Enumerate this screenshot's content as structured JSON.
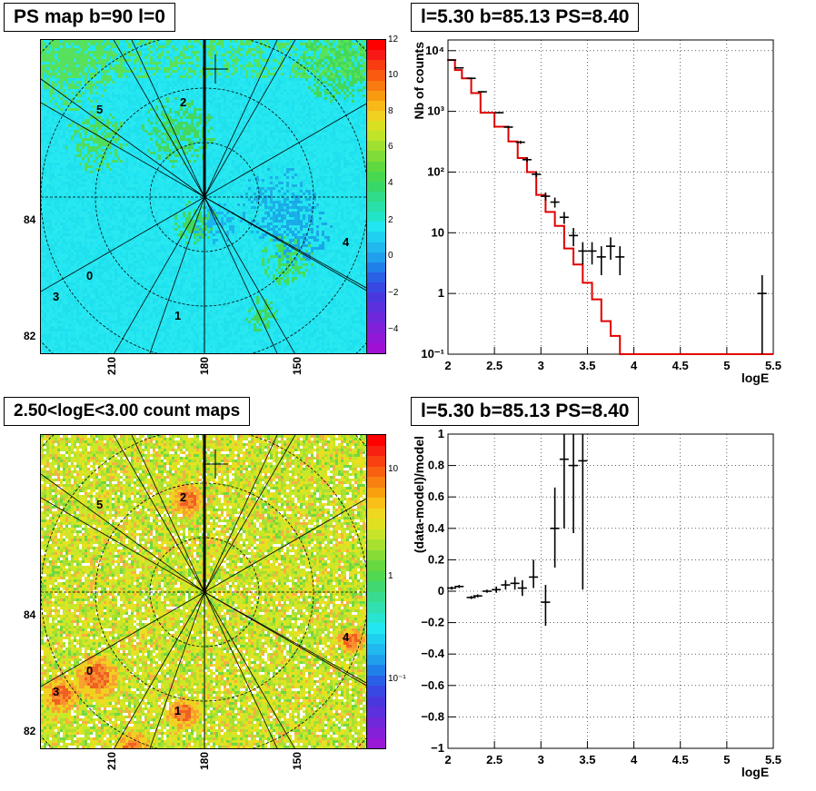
{
  "panels": {
    "top_left_title": "PS map b=90 l=0",
    "top_right_title": "l=5.30 b=85.13 PS=8.40",
    "bottom_left_title": "2.50<logE<3.00 count maps",
    "bottom_right_title": "l=5.30 b=85.13 PS=8.40"
  },
  "colors": {
    "map_top_bg": "#22e6f2",
    "map_bottom_bg": "#c8e82a",
    "model_line": "#e00000",
    "data_marks": "#000000"
  },
  "maps": {
    "top": {
      "colorbar_ticks": [
        "12",
        "10",
        "8",
        "6",
        "4",
        "2",
        "0",
        "−2",
        "−4"
      ],
      "ylabels": [
        "84",
        "82"
      ],
      "xlabels": [
        "210",
        "180",
        "150"
      ],
      "region_labels": [
        "5",
        "2",
        "4",
        "0",
        "3",
        "1"
      ]
    },
    "bottom": {
      "colorbar_ticks": [
        "10",
        "1",
        "10⁻¹"
      ],
      "ylabels": [
        "84",
        "82"
      ],
      "xlabels": [
        "210",
        "180",
        "150"
      ],
      "region_labels": [
        "5",
        "2",
        "4",
        "0",
        "3",
        "1"
      ]
    }
  },
  "chart_data": [
    {
      "type": "line",
      "title": "l=5.30 b=85.13 PS=8.40",
      "xlabel": "logE",
      "ylabel": "Nb of counts",
      "xlim": [
        2,
        5.5
      ],
      "ylim": [
        0.1,
        15000
      ],
      "yscale": "log",
      "grid": true,
      "xticks": [
        "2",
        "2.5",
        "3",
        "3.5",
        "4",
        "4.5",
        "5",
        "5.5"
      ],
      "yticks": [
        {
          "v": 10000,
          "label": "10⁴"
        },
        {
          "v": 1000,
          "label": "10³"
        },
        {
          "v": 100,
          "label": "10²"
        },
        {
          "v": 10,
          "label": "10"
        },
        {
          "v": 1,
          "label": "1"
        },
        {
          "v": 0.1,
          "label": "10⁻¹"
        }
      ],
      "model_step": {
        "edges": [
          2.0,
          2.075,
          2.15,
          2.25,
          2.35,
          2.5,
          2.65,
          2.75,
          2.85,
          2.95,
          3.05,
          3.15,
          3.25,
          3.35,
          3.45,
          3.55,
          3.65,
          3.75,
          3.85,
          4.0,
          5.5
        ],
        "values": [
          7000,
          4800,
          3500,
          2000,
          950,
          560,
          320,
          170,
          100,
          42,
          22,
          13,
          5.5,
          3.0,
          1.5,
          0.8,
          0.35,
          0.2,
          0.1,
          0.1
        ]
      },
      "data_points": [
        {
          "x": 2.04,
          "y": 7000,
          "ylo": 6900,
          "yhi": 7100
        },
        {
          "x": 2.12,
          "y": 5200,
          "ylo": 5100,
          "yhi": 5300
        },
        {
          "x": 2.25,
          "y": 3500,
          "ylo": 3440,
          "yhi": 3560
        },
        {
          "x": 2.37,
          "y": 2100,
          "ylo": 2050,
          "yhi": 2150
        },
        {
          "x": 2.55,
          "y": 950,
          "ylo": 920,
          "yhi": 980
        },
        {
          "x": 2.65,
          "y": 550,
          "ylo": 525,
          "yhi": 575
        },
        {
          "x": 2.78,
          "y": 310,
          "ylo": 292,
          "yhi": 328
        },
        {
          "x": 2.85,
          "y": 160,
          "ylo": 147,
          "yhi": 173
        },
        {
          "x": 2.95,
          "y": 92,
          "ylo": 82,
          "yhi": 102
        },
        {
          "x": 3.05,
          "y": 40,
          "ylo": 34,
          "yhi": 46
        },
        {
          "x": 3.15,
          "y": 32,
          "ylo": 26,
          "yhi": 38
        },
        {
          "x": 3.25,
          "y": 18,
          "ylo": 14,
          "yhi": 22
        },
        {
          "x": 3.35,
          "y": 9,
          "ylo": 6,
          "yhi": 12
        },
        {
          "x": 3.45,
          "y": 5,
          "ylo": 3,
          "yhi": 7
        },
        {
          "x": 3.55,
          "y": 5,
          "ylo": 3,
          "yhi": 7
        },
        {
          "x": 3.65,
          "y": 4,
          "ylo": 2,
          "yhi": 6
        },
        {
          "x": 3.75,
          "y": 6,
          "ylo": 3.6,
          "yhi": 8.4
        },
        {
          "x": 3.85,
          "y": 4,
          "ylo": 2,
          "yhi": 6
        },
        {
          "x": 5.38,
          "y": 1,
          "ylo": 0.1,
          "yhi": 2
        }
      ]
    },
    {
      "type": "scatter",
      "title": "l=5.30 b=85.13 PS=8.40",
      "xlabel": "logE",
      "ylabel": "(data-model)/model",
      "xlim": [
        2,
        5.5
      ],
      "ylim": [
        -1,
        1
      ],
      "grid": true,
      "xticks": [
        "2",
        "2.5",
        "3",
        "3.5",
        "4",
        "4.5",
        "5",
        "5.5"
      ],
      "yticks": [
        "1",
        "0.8",
        "0.6",
        "0.4",
        "0.2",
        "0",
        "−0.2",
        "−0.4",
        "−0.6",
        "−0.8",
        "−1"
      ],
      "data_points": [
        {
          "x": 2.04,
          "y": 0.02,
          "ylo": 0.01,
          "yhi": 0.03
        },
        {
          "x": 2.12,
          "y": 0.03,
          "ylo": 0.02,
          "yhi": 0.04
        },
        {
          "x": 2.25,
          "y": -0.04,
          "ylo": -0.05,
          "yhi": -0.03
        },
        {
          "x": 2.32,
          "y": -0.03,
          "ylo": -0.04,
          "yhi": -0.02
        },
        {
          "x": 2.42,
          "y": 0.0,
          "ylo": -0.01,
          "yhi": 0.01
        },
        {
          "x": 2.52,
          "y": 0.01,
          "ylo": -0.01,
          "yhi": 0.03
        },
        {
          "x": 2.62,
          "y": 0.04,
          "ylo": 0.01,
          "yhi": 0.07
        },
        {
          "x": 2.72,
          "y": 0.05,
          "ylo": 0.01,
          "yhi": 0.09
        },
        {
          "x": 2.8,
          "y": 0.02,
          "ylo": -0.03,
          "yhi": 0.07
        },
        {
          "x": 2.92,
          "y": 0.09,
          "ylo": 0.02,
          "yhi": 0.2
        },
        {
          "x": 3.05,
          "y": -0.07,
          "ylo": -0.22,
          "yhi": 0.04
        },
        {
          "x": 3.15,
          "y": 0.4,
          "ylo": 0.15,
          "yhi": 0.66
        },
        {
          "x": 3.25,
          "y": 0.84,
          "ylo": 0.4,
          "yhi": 1.0
        },
        {
          "x": 3.35,
          "y": 0.8,
          "ylo": 0.37,
          "yhi": 1.0
        },
        {
          "x": 3.45,
          "y": 0.83,
          "ylo": 0.01,
          "yhi": 1.0
        }
      ]
    }
  ]
}
